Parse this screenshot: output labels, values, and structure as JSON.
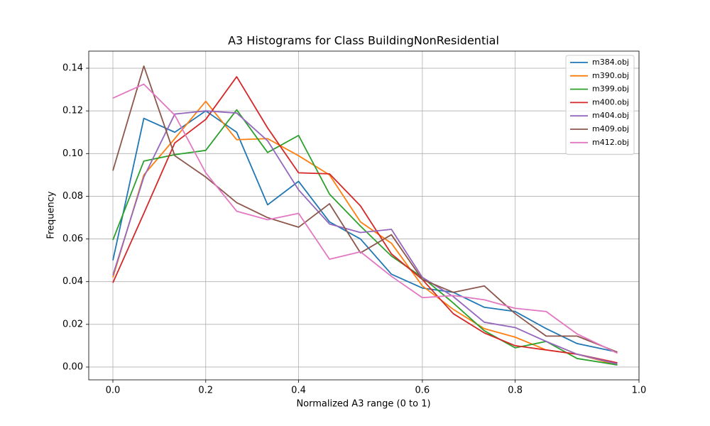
{
  "chart_data": {
    "type": "line",
    "title": "A3 Histograms for Class BuildingNonResidential",
    "xlabel": "Normalized A3 range (0 to 1)",
    "ylabel": "Frequency",
    "x": [
      0,
      1,
      2,
      3,
      4,
      5,
      6,
      7,
      8,
      9,
      10,
      11,
      12,
      13,
      14,
      15,
      16.3
    ],
    "xlim": [
      -0.78,
      17
    ],
    "xticks": [
      {
        "value": 0,
        "label": "0.0"
      },
      {
        "value": 3,
        "label": "0.2"
      },
      {
        "value": 6,
        "label": "0.4"
      },
      {
        "value": 10,
        "label": "0.6"
      },
      {
        "value": 13,
        "label": "0.8"
      },
      {
        "value": 17,
        "label": "1.0"
      }
    ],
    "ylim": [
      -0.006,
      0.148
    ],
    "yticks": [
      {
        "value": 0,
        "label": "0.00"
      },
      {
        "value": 0.02,
        "label": "0.02"
      },
      {
        "value": 0.04,
        "label": "0.04"
      },
      {
        "value": 0.06,
        "label": "0.06"
      },
      {
        "value": 0.08,
        "label": "0.08"
      },
      {
        "value": 0.1,
        "label": "0.10"
      },
      {
        "value": 0.12,
        "label": "0.12"
      },
      {
        "value": 0.14,
        "label": "0.14"
      }
    ],
    "grid": true,
    "legend": "upper right",
    "series": [
      {
        "name": "m384.obj",
        "color": "#1f77b4",
        "values": [
          0.05,
          0.1165,
          0.11,
          0.12,
          0.11,
          0.076,
          0.087,
          0.068,
          0.06,
          0.0435,
          0.037,
          0.035,
          0.028,
          0.026,
          0.018,
          0.011,
          0.007
        ]
      },
      {
        "name": "m390.obj",
        "color": "#ff7f0e",
        "values": [
          0.042,
          0.09,
          0.107,
          0.1245,
          0.1065,
          0.107,
          0.099,
          0.09,
          0.068,
          0.058,
          0.038,
          0.027,
          0.018,
          0.014,
          0.008,
          0.006,
          0.001
        ]
      },
      {
        "name": "m399.obj",
        "color": "#2ca02c",
        "values": [
          0.0595,
          0.0965,
          0.0995,
          0.1015,
          0.1205,
          0.1005,
          0.1085,
          0.081,
          0.066,
          0.052,
          0.042,
          0.03,
          0.017,
          0.009,
          0.012,
          0.004,
          0.001
        ]
      },
      {
        "name": "m400.obj",
        "color": "#d62728",
        "values": [
          0.0395,
          0.072,
          0.105,
          0.116,
          0.136,
          0.112,
          0.091,
          0.0905,
          0.0755,
          0.053,
          0.041,
          0.025,
          0.016,
          0.01,
          0.008,
          0.006,
          0.002
        ]
      },
      {
        "name": "m404.obj",
        "color": "#9467bd",
        "values": [
          0.043,
          0.089,
          0.1185,
          0.12,
          0.119,
          0.106,
          0.083,
          0.067,
          0.063,
          0.0645,
          0.042,
          0.033,
          0.021,
          0.0185,
          0.012,
          0.006,
          0.0015
        ]
      },
      {
        "name": "m409.obj",
        "color": "#8c564b",
        "values": [
          0.092,
          0.141,
          0.099,
          0.089,
          0.077,
          0.07,
          0.0655,
          0.0765,
          0.0535,
          0.062,
          0.041,
          0.035,
          0.038,
          0.025,
          0.0145,
          0.0145,
          0.007
        ]
      },
      {
        "name": "m412.obj",
        "color": "#e377c2",
        "values": [
          0.126,
          0.1325,
          0.118,
          0.091,
          0.073,
          0.069,
          0.072,
          0.0505,
          0.054,
          0.0425,
          0.0325,
          0.0335,
          0.0315,
          0.0275,
          0.026,
          0.0155,
          0.0065
        ]
      }
    ]
  }
}
